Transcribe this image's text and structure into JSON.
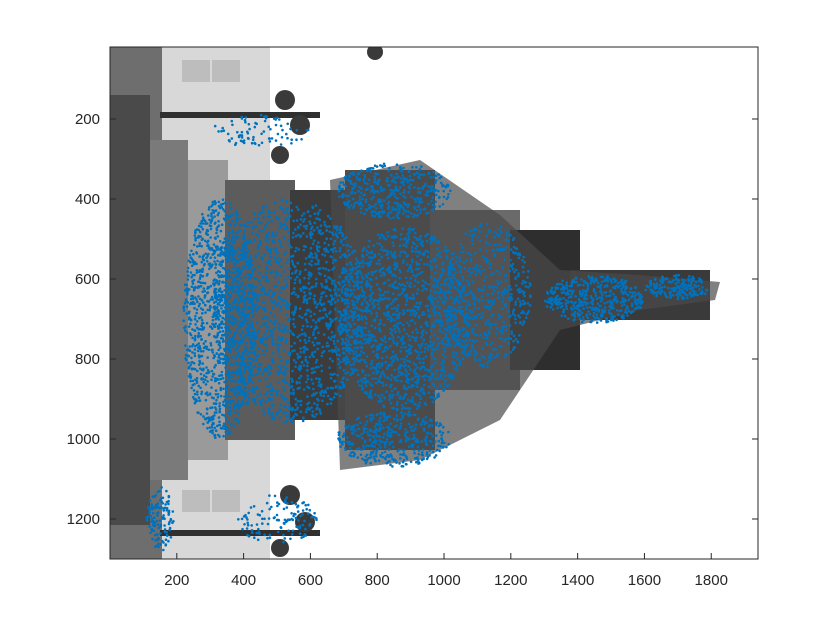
{
  "chart_data": {
    "type": "scatter",
    "title": "",
    "xlabel": "",
    "ylabel": "",
    "xlim": [
      0,
      1940
    ],
    "ylim": [
      1300,
      20
    ],
    "y_axis_reversed": true,
    "grid": false,
    "legend": "none",
    "xticks": [
      200,
      400,
      600,
      800,
      1000,
      1200,
      1400,
      1600,
      1800
    ],
    "yticks": [
      200,
      400,
      600,
      800,
      1000,
      1200
    ],
    "x_tick_labels": [
      "200",
      "400",
      "600",
      "800",
      "1000",
      "1200",
      "1400",
      "1600",
      "1800"
    ],
    "y_tick_labels": [
      "200",
      "400",
      "600",
      "800",
      "1000",
      "1200"
    ],
    "background_image": "grayscale photograph of a monument with ornate lamp posts, rotated 90 degrees",
    "marker_color": "#0072bd",
    "series": [
      {
        "regions": [
          {
            "shape": "ellipse",
            "center": [
              330,
              700
            ],
            "radius": [
              110,
              300
            ],
            "count": 1200
          },
          {
            "shape": "ellipse",
            "center": [
              540,
              680
            ],
            "radius": [
              230,
              280
            ],
            "count": 1500
          },
          {
            "shape": "ellipse",
            "center": [
              880,
              700
            ],
            "radius": [
              200,
              230
            ],
            "count": 1300
          },
          {
            "shape": "ellipse",
            "center": [
              1130,
              640
            ],
            "radius": [
              130,
              180
            ],
            "count": 500
          },
          {
            "shape": "ellipse",
            "center": [
              1450,
              650
            ],
            "radius": [
              150,
              60
            ],
            "count": 450
          },
          {
            "shape": "ellipse",
            "center": [
              1700,
              620
            ],
            "radius": [
              100,
              30
            ],
            "count": 180
          },
          {
            "shape": "ellipse",
            "center": [
              850,
              380
            ],
            "radius": [
              170,
              70
            ],
            "count": 400
          },
          {
            "shape": "ellipse",
            "center": [
              850,
              1000
            ],
            "radius": [
              170,
              70
            ],
            "count": 400
          },
          {
            "shape": "ellipse",
            "center": [
              150,
              1200
            ],
            "radius": [
              40,
              80
            ],
            "count": 120
          },
          {
            "shape": "ellipse",
            "center": [
              500,
              1200
            ],
            "radius": [
              120,
              60
            ],
            "count": 120
          },
          {
            "shape": "ellipse",
            "center": [
              450,
              230
            ],
            "radius": [
              150,
              40
            ],
            "count": 80
          }
        ]
      }
    ]
  }
}
